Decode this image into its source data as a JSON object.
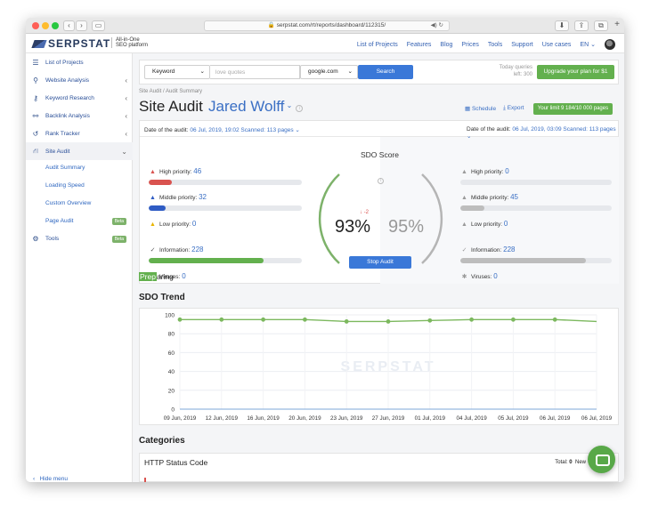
{
  "browser": {
    "url": "serpstat.com/rt/reports/dashboard/112315/",
    "nav_back": "‹",
    "nav_forward": "›"
  },
  "app": {
    "logo_text": "SERPSTAT",
    "tagline_1": "All-in-One",
    "tagline_2": "SEO platform",
    "top_nav": [
      "List of Projects",
      "Features",
      "Blog",
      "Prices",
      "Tools",
      "Support",
      "Use cases",
      "EN"
    ]
  },
  "sidebar": {
    "items": [
      {
        "label": "List of Projects",
        "icon": "menu-icon"
      },
      {
        "label": "Website Analysis",
        "icon": "analysis-icon"
      },
      {
        "label": "Keyword Research",
        "icon": "key-icon"
      },
      {
        "label": "Backlink Analysis",
        "icon": "link-icon"
      },
      {
        "label": "Rank Tracker",
        "icon": "history-icon"
      },
      {
        "label": "Site Audit",
        "icon": "sitemap-icon"
      }
    ],
    "sub_items": [
      "Audit Summary",
      "Loading Speed",
      "Custom Overview",
      "Page Audit"
    ],
    "tools_label": "Tools",
    "beta_label": "Beta",
    "hide_menu": "Hide menu"
  },
  "search": {
    "type_value": "Keyword",
    "query_placeholder": "love quotes",
    "domain_value": "google.com",
    "search_button": "Search",
    "quota_label": "Today queries",
    "quota_left": "left: 300",
    "upgrade_button": "Upgrade your plan for $1"
  },
  "page": {
    "breadcrumb": "Site Audit / Audit Summary",
    "title": "Site Audit",
    "project_name": "Jared Wolff",
    "schedule": "Schedule",
    "export": "Export",
    "limit": "Your limit 9 184/10 000 pages"
  },
  "audit": {
    "left_date_label": "Date of the audit:",
    "left_date_value": "06 Jul, 2019, 19:02 Scanned: 113 pages",
    "right_date_label": "Date of the audit:",
    "right_date_value": "06 Jul, 2019, 03:09 Scanned: 113 pages",
    "labels": {
      "high": "High priority:",
      "middle": "Middle priority:",
      "low": "Low priority:",
      "info": "Information:",
      "viruses": "Viruses:"
    },
    "left": {
      "high": "46",
      "middle": "32",
      "low": "0",
      "info": "228",
      "viruses": "0"
    },
    "right": {
      "high": "0",
      "middle": "45",
      "low": "0",
      "info": "228",
      "viruses": "0"
    },
    "left_fill": {
      "high": 0.15,
      "middle": 0.11,
      "info": 0.75
    },
    "right_fill": {
      "high": 0,
      "middle": 0.16,
      "info": 0.83
    },
    "sdo_title": "SDO Score",
    "score_current": "93%",
    "score_previous": "95%",
    "delta": "↓ -2",
    "stop_button": "Stop Audit",
    "preparing_highlight": "Prep",
    "preparing_rest": "aring",
    "colors": {
      "high": "#d9534f",
      "middle": "#2f5cc4",
      "info": "#63b04e",
      "grey": "#bdbdbd"
    }
  },
  "trend_title": "SDO Trend",
  "chart_data": {
    "type": "line",
    "categories": [
      "09 Jun, 2019",
      "12 Jun, 2019",
      "16 Jun, 2019",
      "20 Jun, 2019",
      "23 Jun, 2019",
      "27 Jun, 2019",
      "01 Jul, 2019",
      "04 Jul, 2019",
      "05 Jul, 2019",
      "06 Jul, 2019",
      "06 Jul, 2019"
    ],
    "values": [
      95,
      95,
      95,
      95,
      93,
      93,
      94,
      95,
      95,
      95,
      93
    ],
    "yticks": [
      0,
      20,
      40,
      60,
      80,
      100
    ],
    "ylim": [
      0,
      100
    ],
    "color": "#7cb85e",
    "watermark": "SERPSTAT"
  },
  "categories_title": "Categories",
  "http_status": {
    "title": "HTTP Status Code",
    "total_label": "Total:",
    "total_value": "0",
    "new_label": "New"
  }
}
